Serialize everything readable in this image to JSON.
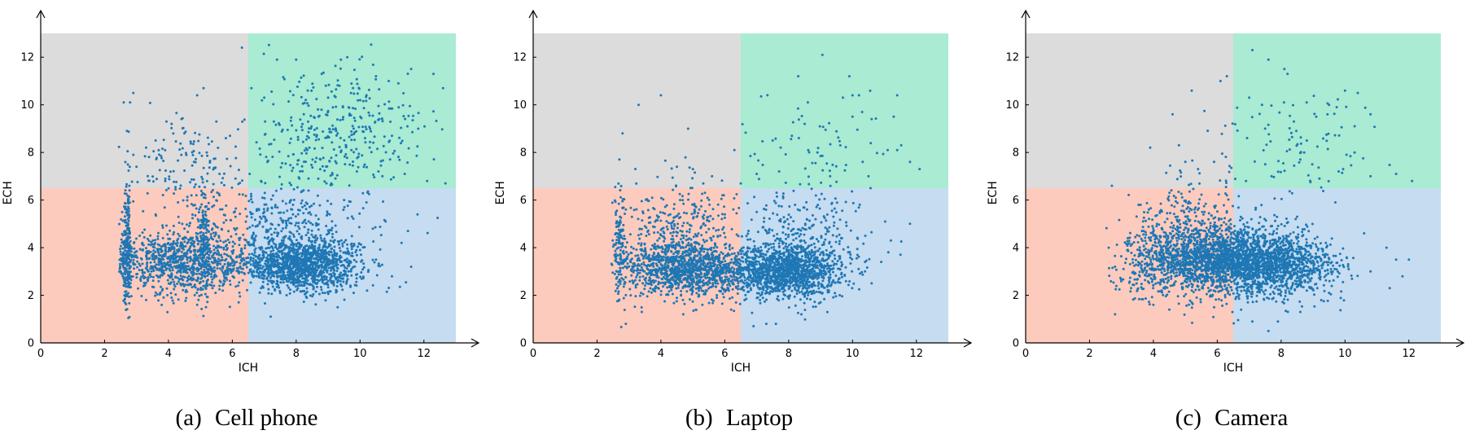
{
  "figure": {
    "panels": [
      {
        "caption_tag": "(a)",
        "caption_text": "Cell phone"
      },
      {
        "caption_tag": "(b)",
        "caption_text": "Laptop"
      },
      {
        "caption_tag": "(c)",
        "caption_text": "Camera"
      }
    ]
  },
  "chart_data": [
    {
      "type": "scatter",
      "title": "",
      "xlabel": "ICH",
      "ylabel": "ECH",
      "xlim": [
        0,
        13
      ],
      "ylim": [
        0,
        13
      ],
      "xticks": [
        0,
        2,
        4,
        6,
        8,
        10,
        12
      ],
      "yticks": [
        0,
        2,
        4,
        6,
        8,
        10,
        12
      ],
      "grid": false,
      "marker_color": "#1f77b4",
      "regions": [
        {
          "x": [
            0,
            6.5
          ],
          "y": [
            0,
            6.5
          ],
          "color": "#fdcbbd"
        },
        {
          "x": [
            6.5,
            13
          ],
          "y": [
            0,
            6.5
          ],
          "color": "#c6dcf0"
        },
        {
          "x": [
            0,
            6.5
          ],
          "y": [
            6.5,
            13
          ],
          "color": "#dcdcdc"
        },
        {
          "x": [
            6.5,
            13
          ],
          "y": [
            6.5,
            13
          ],
          "color": "#a9ebd3"
        }
      ],
      "points": [
        [
          2.6,
          10.1
        ],
        [
          2.8,
          10.1
        ],
        [
          2.9,
          10.5
        ],
        [
          6.3,
          12.4
        ],
        [
          5.1,
          10.7
        ],
        [
          4.9,
          10.4
        ],
        [
          5.5,
          9.3
        ],
        [
          6.6,
          10.7
        ],
        [
          3.3,
          8.2
        ],
        [
          3.6,
          8.5
        ],
        [
          4.1,
          9.2
        ],
        [
          4.5,
          8.8
        ],
        [
          5.2,
          8.0
        ],
        [
          5.8,
          8.6
        ],
        [
          3.0,
          7.4
        ],
        [
          4.8,
          7.6
        ],
        [
          2.7,
          8.9
        ],
        [
          2.9,
          7.9
        ],
        [
          3.9,
          6.8
        ],
        [
          5.6,
          7.1
        ],
        [
          6.1,
          6.9
        ],
        [
          7.4,
          11.9
        ],
        [
          8.0,
          11.9
        ],
        [
          8.8,
          11.3
        ],
        [
          9.4,
          11.9
        ],
        [
          9.6,
          12.0
        ],
        [
          10.2,
          10.4
        ],
        [
          10.9,
          11.0
        ],
        [
          11.2,
          10.9
        ],
        [
          11.6,
          11.5
        ],
        [
          12.3,
          11.3
        ],
        [
          12.6,
          10.7
        ],
        [
          10.5,
          11.2
        ],
        [
          8.3,
          10.2
        ],
        [
          9.0,
          10.3
        ],
        [
          7.0,
          10.3
        ],
        [
          7.3,
          9.3
        ],
        [
          8.7,
          9.5
        ],
        [
          9.8,
          9.0
        ],
        [
          10.6,
          9.4
        ],
        [
          11.0,
          8.7
        ],
        [
          10.3,
          8.2
        ],
        [
          9.3,
          8.8
        ],
        [
          7.8,
          8.4
        ],
        [
          8.6,
          7.6
        ],
        [
          7.1,
          7.6
        ],
        [
          9.9,
          7.2
        ],
        [
          10.7,
          7.0
        ],
        [
          11.4,
          7.1
        ],
        [
          12.1,
          6.8
        ],
        [
          8.1,
          6.9
        ],
        [
          9.1,
          6.7
        ],
        [
          6.9,
          6.8
        ],
        [
          11.8,
          5.4
        ],
        [
          11.5,
          4.7
        ],
        [
          11.3,
          4.2
        ],
        [
          11.6,
          3.2
        ],
        [
          11.0,
          2.8
        ],
        [
          10.5,
          3.5
        ],
        [
          9.8,
          2.1
        ],
        [
          9.3,
          1.5
        ],
        [
          8.9,
          2.1
        ],
        [
          7.2,
          1.1
        ],
        [
          7.7,
          2.0
        ],
        [
          2.5,
          3.0
        ],
        [
          2.6,
          4.2
        ],
        [
          2.7,
          3.6
        ],
        [
          2.8,
          2.7
        ],
        [
          3.1,
          4.5
        ],
        [
          3.5,
          3.2
        ],
        [
          3.9,
          3.7
        ],
        [
          4.4,
          3.1
        ],
        [
          4.8,
          3.9
        ],
        [
          5.1,
          4.6
        ],
        [
          5.2,
          3.3
        ],
        [
          5.5,
          2.8
        ],
        [
          6.0,
          3.5
        ],
        [
          6.4,
          4.1
        ],
        [
          6.8,
          3.3
        ],
        [
          7.2,
          3.6
        ],
        [
          7.6,
          3.0
        ],
        [
          8.0,
          3.8
        ],
        [
          8.4,
          3.2
        ],
        [
          8.8,
          4.3
        ],
        [
          9.2,
          2.9
        ],
        [
          9.6,
          3.4
        ],
        [
          10.0,
          3.9
        ],
        [
          10.4,
          4.8
        ],
        [
          3.3,
          1.8
        ],
        [
          4.1,
          1.9
        ],
        [
          4.9,
          1.6
        ],
        [
          5.7,
          2.2
        ],
        [
          6.2,
          1.7
        ],
        [
          6.9,
          2.3
        ],
        [
          7.4,
          2.6
        ],
        [
          8.2,
          2.4
        ],
        [
          9.0,
          2.6
        ],
        [
          9.7,
          2.4
        ],
        [
          2.7,
          5.6
        ],
        [
          3.6,
          5.4
        ],
        [
          4.3,
          5.9
        ],
        [
          5.0,
          5.7
        ],
        [
          5.6,
          6.2
        ],
        [
          6.1,
          5.3
        ],
        [
          7.0,
          5.5
        ],
        [
          7.9,
          5.8
        ],
        [
          8.7,
          5.2
        ],
        [
          9.5,
          6.0
        ],
        [
          10.2,
          5.9
        ],
        [
          10.8,
          5.1
        ]
      ],
      "clusters": [
        {
          "cx": 8.2,
          "cy": 3.3,
          "sx": 0.9,
          "sy": 0.55,
          "n": 1300
        },
        {
          "cx": 4.4,
          "cy": 3.4,
          "sx": 1.1,
          "sy": 0.65,
          "n": 950
        },
        {
          "cx": 2.7,
          "cy": 3.8,
          "sx": 0.08,
          "sy": 1.2,
          "n": 260
        },
        {
          "cx": 5.1,
          "cy": 4.0,
          "sx": 0.12,
          "sy": 1.1,
          "n": 170
        },
        {
          "cx": 9.3,
          "cy": 9.0,
          "sx": 1.3,
          "sy": 1.2,
          "n": 330
        },
        {
          "cx": 4.8,
          "cy": 7.3,
          "sx": 1.0,
          "sy": 1.1,
          "n": 150
        },
        {
          "cx": 7.5,
          "cy": 4.8,
          "sx": 1.4,
          "sy": 1.0,
          "n": 350
        }
      ]
    },
    {
      "type": "scatter",
      "title": "",
      "xlabel": "ICH",
      "ylabel": "ECH",
      "xlim": [
        0,
        13
      ],
      "ylim": [
        0,
        13
      ],
      "xticks": [
        0,
        2,
        4,
        6,
        8,
        10,
        12
      ],
      "yticks": [
        0,
        2,
        4,
        6,
        8,
        10,
        12
      ],
      "grid": false,
      "marker_color": "#1f77b4",
      "regions": [
        {
          "x": [
            0,
            6.5
          ],
          "y": [
            0,
            6.5
          ],
          "color": "#fdcbbd"
        },
        {
          "x": [
            6.5,
            13
          ],
          "y": [
            0,
            6.5
          ],
          "color": "#c6dcf0"
        },
        {
          "x": [
            0,
            6.5
          ],
          "y": [
            6.5,
            13
          ],
          "color": "#dcdcdc"
        },
        {
          "x": [
            6.5,
            13
          ],
          "y": [
            6.5,
            13
          ],
          "color": "#a9ebd3"
        }
      ],
      "points": [
        [
          3.3,
          10.0
        ],
        [
          4.0,
          10.4
        ],
        [
          2.8,
          8.8
        ],
        [
          2.7,
          7.7
        ],
        [
          6.3,
          8.1
        ],
        [
          8.3,
          11.2
        ],
        [
          9.9,
          11.2
        ],
        [
          10.0,
          10.4
        ],
        [
          9.7,
          10.3
        ],
        [
          10.2,
          10.4
        ],
        [
          11.4,
          10.4
        ],
        [
          10.3,
          9.7
        ],
        [
          10.6,
          9.4
        ],
        [
          10.0,
          9.5
        ],
        [
          8.6,
          10.1
        ],
        [
          8.5,
          9.2
        ],
        [
          8.1,
          8.7
        ],
        [
          7.5,
          8.5
        ],
        [
          8.9,
          8.0
        ],
        [
          11.1,
          8.1
        ],
        [
          11.4,
          8.1
        ],
        [
          11.8,
          7.6
        ],
        [
          12.1,
          7.3
        ],
        [
          9.3,
          7.0
        ],
        [
          10.5,
          7.0
        ],
        [
          7.0,
          7.1
        ],
        [
          7.7,
          7.2
        ],
        [
          5.0,
          7.3
        ],
        [
          4.5,
          7.4
        ],
        [
          5.6,
          7.0
        ],
        [
          6.5,
          6.7
        ],
        [
          11.8,
          5.0
        ],
        [
          11.2,
          4.3
        ],
        [
          10.4,
          4.5
        ],
        [
          11.5,
          3.7
        ],
        [
          10.9,
          3.4
        ],
        [
          7.3,
          0.8
        ],
        [
          6.9,
          0.7
        ],
        [
          7.6,
          0.8
        ],
        [
          2.9,
          0.8
        ],
        [
          3.4,
          1.3
        ],
        [
          4.7,
          1.2
        ],
        [
          5.3,
          1.6
        ],
        [
          6.2,
          1.4
        ],
        [
          8.4,
          1.2
        ],
        [
          9.0,
          1.7
        ],
        [
          9.6,
          2.0
        ],
        [
          10.6,
          2.5
        ],
        [
          2.6,
          4.2
        ],
        [
          2.7,
          3.3
        ],
        [
          2.9,
          5.6
        ],
        [
          3.5,
          4.9
        ],
        [
          4.2,
          3.6
        ],
        [
          5.0,
          3.2
        ],
        [
          5.7,
          2.6
        ],
        [
          6.4,
          3.4
        ],
        [
          7.1,
          2.9
        ],
        [
          7.8,
          3.3
        ],
        [
          8.5,
          2.7
        ],
        [
          9.3,
          3.1
        ],
        [
          9.9,
          3.8
        ],
        [
          4.6,
          6.0
        ],
        [
          5.2,
          5.6
        ],
        [
          6.0,
          5.4
        ],
        [
          7.0,
          5.5
        ],
        [
          8.2,
          5.8
        ],
        [
          9.4,
          5.3
        ]
      ],
      "clusters": [
        {
          "cx": 7.9,
          "cy": 3.0,
          "sx": 0.9,
          "sy": 0.55,
          "n": 1300
        },
        {
          "cx": 4.8,
          "cy": 3.1,
          "sx": 1.0,
          "sy": 0.55,
          "n": 1200
        },
        {
          "cx": 2.7,
          "cy": 4.0,
          "sx": 0.1,
          "sy": 1.2,
          "n": 120
        },
        {
          "cx": 4.7,
          "cy": 4.6,
          "sx": 0.9,
          "sy": 1.1,
          "n": 350
        },
        {
          "cx": 8.5,
          "cy": 4.4,
          "sx": 1.0,
          "sy": 1.0,
          "n": 250
        },
        {
          "cx": 8.9,
          "cy": 8.3,
          "sx": 1.1,
          "sy": 1.1,
          "n": 60
        }
      ]
    },
    {
      "type": "scatter",
      "title": "",
      "xlabel": "ICH",
      "ylabel": "ECH",
      "xlim": [
        0,
        13
      ],
      "ylim": [
        0,
        13
      ],
      "xticks": [
        0,
        2,
        4,
        6,
        8,
        10,
        12
      ],
      "yticks": [
        0,
        2,
        4,
        6,
        8,
        10,
        12
      ],
      "grid": false,
      "marker_color": "#1f77b4",
      "regions": [
        {
          "x": [
            0,
            6.5
          ],
          "y": [
            0,
            6.5
          ],
          "color": "#fdcbbd"
        },
        {
          "x": [
            6.5,
            13
          ],
          "y": [
            0,
            6.5
          ],
          "color": "#c6dcf0"
        },
        {
          "x": [
            0,
            6.5
          ],
          "y": [
            6.5,
            13
          ],
          "color": "#dcdcdc"
        },
        {
          "x": [
            6.5,
            13
          ],
          "y": [
            6.5,
            13
          ],
          "color": "#a9ebd3"
        }
      ],
      "points": [
        [
          7.1,
          12.3
        ],
        [
          7.6,
          11.9
        ],
        [
          8.1,
          11.5
        ],
        [
          8.2,
          11.3
        ],
        [
          6.3,
          11.2
        ],
        [
          6.1,
          11.0
        ],
        [
          5.2,
          10.6
        ],
        [
          10.0,
          10.6
        ],
        [
          10.8,
          9.6
        ],
        [
          10.4,
          10.5
        ],
        [
          7.0,
          10.3
        ],
        [
          7.4,
          10.0
        ],
        [
          8.8,
          10.1
        ],
        [
          9.5,
          10.0
        ],
        [
          9.1,
          9.5
        ],
        [
          10.3,
          9.1
        ],
        [
          7.5,
          9.0
        ],
        [
          8.4,
          9.3
        ],
        [
          4.6,
          9.6
        ],
        [
          4.8,
          8.3
        ],
        [
          3.9,
          8.2
        ],
        [
          10.3,
          8.0
        ],
        [
          10.8,
          7.0
        ],
        [
          11.6,
          7.1
        ],
        [
          12.1,
          6.8
        ],
        [
          9.8,
          7.2
        ],
        [
          8.6,
          7.7
        ],
        [
          9.2,
          6.9
        ],
        [
          5.0,
          7.6
        ],
        [
          5.4,
          7.3
        ],
        [
          5.9,
          7.6
        ],
        [
          6.9,
          6.8
        ],
        [
          7.7,
          7.0
        ],
        [
          11.3,
          4.0
        ],
        [
          11.6,
          3.5
        ],
        [
          12.0,
          3.5
        ],
        [
          11.8,
          2.8
        ],
        [
          11.4,
          2.3
        ],
        [
          10.8,
          3.0
        ],
        [
          9.5,
          2.1
        ],
        [
          8.6,
          1.3
        ],
        [
          7.9,
          0.9
        ],
        [
          7.6,
          0.5
        ],
        [
          7.1,
          0.9
        ],
        [
          2.8,
          1.2
        ],
        [
          3.3,
          2.3
        ],
        [
          4.0,
          1.6
        ],
        [
          4.5,
          1.4
        ],
        [
          5.2,
          1.7
        ],
        [
          5.9,
          1.5
        ],
        [
          2.6,
          4.0
        ],
        [
          2.8,
          3.2
        ],
        [
          3.2,
          4.4
        ],
        [
          2.7,
          6.6
        ],
        [
          3.6,
          5.8
        ],
        [
          4.1,
          3.7
        ],
        [
          4.6,
          3.2
        ],
        [
          5.3,
          4.3
        ],
        [
          6.0,
          3.0
        ],
        [
          6.8,
          3.8
        ],
        [
          7.3,
          3.1
        ],
        [
          8.0,
          4.0
        ],
        [
          8.7,
          3.5
        ],
        [
          9.4,
          4.2
        ],
        [
          10.1,
          3.3
        ],
        [
          10.6,
          4.6
        ],
        [
          4.7,
          6.1
        ],
        [
          5.6,
          5.5
        ],
        [
          6.3,
          6.2
        ],
        [
          7.2,
          5.6
        ],
        [
          8.5,
          5.3
        ],
        [
          9.7,
          5.9
        ]
      ],
      "clusters": [
        {
          "cx": 6.0,
          "cy": 3.5,
          "sx": 1.0,
          "sy": 0.7,
          "n": 1500
        },
        {
          "cx": 7.8,
          "cy": 3.3,
          "sx": 0.95,
          "sy": 0.7,
          "n": 1200
        },
        {
          "cx": 4.3,
          "cy": 3.5,
          "sx": 0.8,
          "sy": 0.8,
          "n": 400
        },
        {
          "cx": 8.5,
          "cy": 8.5,
          "sx": 1.2,
          "sy": 1.3,
          "n": 90
        },
        {
          "cx": 5.2,
          "cy": 5.4,
          "sx": 0.9,
          "sy": 0.9,
          "n": 180
        }
      ]
    }
  ]
}
